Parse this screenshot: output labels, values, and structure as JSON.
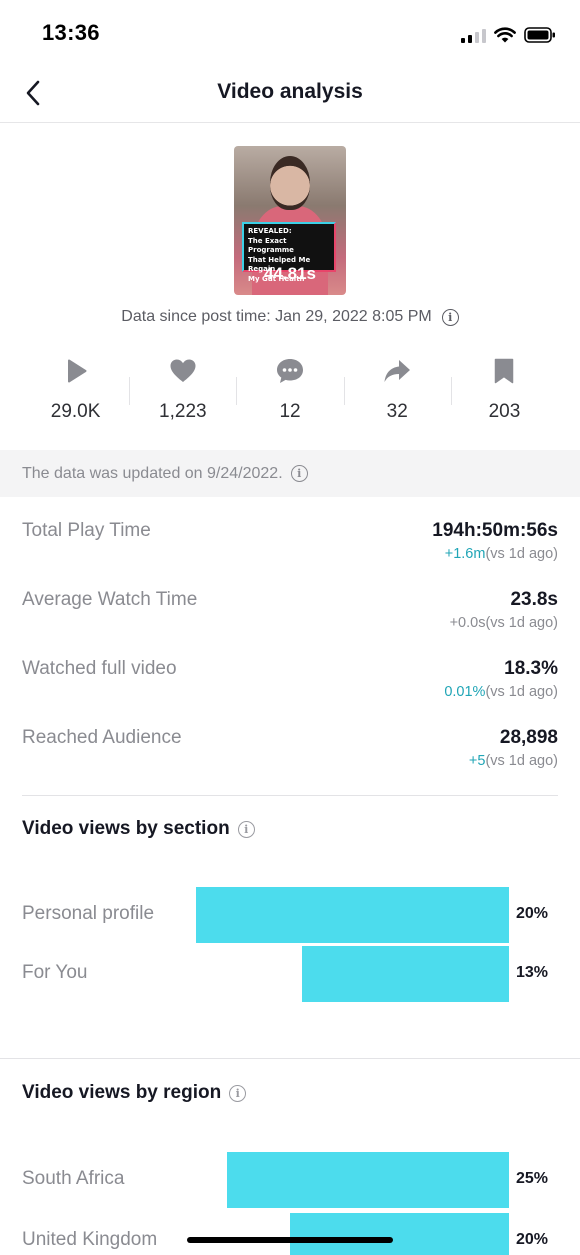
{
  "status": {
    "time": "13:36"
  },
  "header": {
    "title": "Video analysis"
  },
  "video": {
    "caption_lines": [
      "REVEALED:",
      "The Exact Programme",
      "That Helped Me Regain",
      "My Gut Health"
    ],
    "duration": "44.81s"
  },
  "data_since": "Data since post time: Jan 29, 2022 8:05 PM",
  "metrics": [
    {
      "icon": "play-icon",
      "value": "29.0K"
    },
    {
      "icon": "heart-icon",
      "value": "1,223"
    },
    {
      "icon": "comment-icon",
      "value": "12"
    },
    {
      "icon": "share-icon",
      "value": "32"
    },
    {
      "icon": "bookmark-icon",
      "value": "203"
    }
  ],
  "update_notice": "The data was updated on 9/24/2022.",
  "stats": [
    {
      "label": "Total Play Time",
      "value": "194h:50m:56s",
      "change": "+1.6m",
      "compare": "(vs 1d ago)"
    },
    {
      "label": "Average Watch Time",
      "value": "23.8s",
      "change": "+0.0s",
      "compare": "(vs 1d ago)"
    },
    {
      "label": "Watched full video",
      "value": "18.3%",
      "change": "0.01%",
      "compare": "(vs 1d ago)"
    },
    {
      "label": "Reached Audience",
      "value": "28,898",
      "change": "+5",
      "compare": "(vs 1d ago)"
    }
  ],
  "views_by_section": {
    "title": "Video views by section",
    "items": [
      {
        "label": "Personal profile",
        "percent_label": "20%",
        "fraction": 1.0
      },
      {
        "label": "For You",
        "percent_label": "13%",
        "fraction": 0.66
      }
    ]
  },
  "views_by_region": {
    "title": "Video views by region",
    "items": [
      {
        "label": "South Africa",
        "percent_label": "25%",
        "fraction": 0.9
      },
      {
        "label": "United Kingdom",
        "percent_label": "20%",
        "fraction": 0.7
      }
    ]
  },
  "colors": {
    "bar": "#4cdced",
    "positive_change": "#20a5b6"
  }
}
